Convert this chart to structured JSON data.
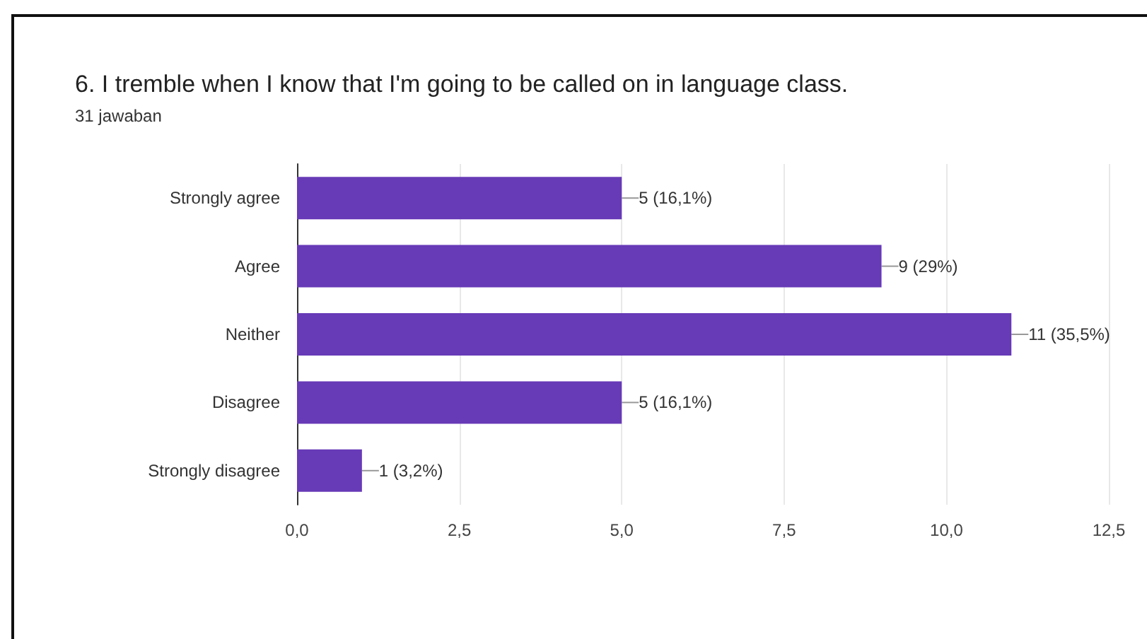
{
  "chart_data": {
    "type": "bar",
    "orientation": "horizontal",
    "title": "6. I tremble when I know that I'm going to be called on in language class.",
    "subtitle": "31 jawaban",
    "categories": [
      "Strongly agree",
      "Agree",
      "Neither",
      "Disagree",
      "Strongly disagree"
    ],
    "values": [
      5,
      9,
      11,
      5,
      1
    ],
    "color": "#673ab7",
    "value_labels": [
      "5 (16,1%)",
      "9 (29%)",
      "11 (35,5%)",
      "5 (16,1%)",
      "1 (3,2%)"
    ],
    "xlim": [
      0,
      12.5
    ],
    "xticks": [
      {
        "value": 0,
        "label": "0,0"
      },
      {
        "value": 2.5,
        "label": "2,5"
      },
      {
        "value": 5,
        "label": "5,0"
      },
      {
        "value": 7.5,
        "label": "7,5"
      },
      {
        "value": 10,
        "label": "10,0"
      },
      {
        "value": 12.5,
        "label": "12,5"
      }
    ],
    "grid": "x"
  }
}
